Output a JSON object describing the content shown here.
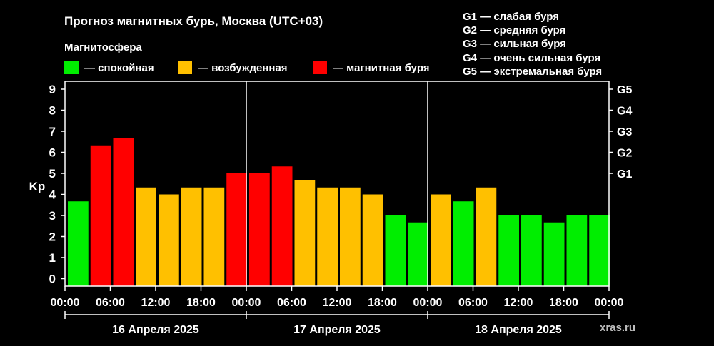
{
  "title": "Прогноз магнитных бурь, Москва (UTC+03)",
  "legend": {
    "title": "Магнитосфера",
    "items": [
      {
        "label": "— спокойная",
        "color": "#00ee00"
      },
      {
        "label": "— возбужденная",
        "color": "#ffc000"
      },
      {
        "label": "— магнитная буря",
        "color": "#ff0000"
      }
    ]
  },
  "g_scale": [
    "G1 — слабая буря",
    "G2 — средняя буря",
    "G3 — сильная буря",
    "G4 — очень сильная буря",
    "G5 — экстремальная буря"
  ],
  "watermark": "xras.ru",
  "chart_data": {
    "type": "bar",
    "ylabel": "Kp",
    "ylim": [
      0,
      9
    ],
    "y_ticks": [
      0,
      1,
      2,
      3,
      4,
      5,
      6,
      7,
      8,
      9
    ],
    "right_ticks": [
      {
        "label": "G1",
        "value": 5
      },
      {
        "label": "G2",
        "value": 6
      },
      {
        "label": "G3",
        "value": 7
      },
      {
        "label": "G4",
        "value": 8
      },
      {
        "label": "G5",
        "value": 9
      }
    ],
    "x_tick_labels": [
      "00:00",
      "06:00",
      "12:00",
      "18:00",
      "00:00",
      "06:00",
      "12:00",
      "18:00",
      "00:00",
      "06:00",
      "12:00",
      "18:00",
      "00:00"
    ],
    "days": [
      "16 Апреля 2025",
      "17 Апреля 2025",
      "18 Апреля 2025"
    ],
    "thresholds": {
      "quiet_below": 4,
      "storm_from": 5
    },
    "values": [
      3.67,
      6.33,
      6.67,
      4.33,
      4.0,
      4.33,
      4.33,
      5.0,
      5.0,
      5.33,
      4.67,
      4.33,
      4.33,
      4.0,
      3.0,
      2.67,
      4.0,
      3.67,
      4.33,
      3.0,
      3.0,
      2.67,
      3.0,
      3.0
    ]
  }
}
